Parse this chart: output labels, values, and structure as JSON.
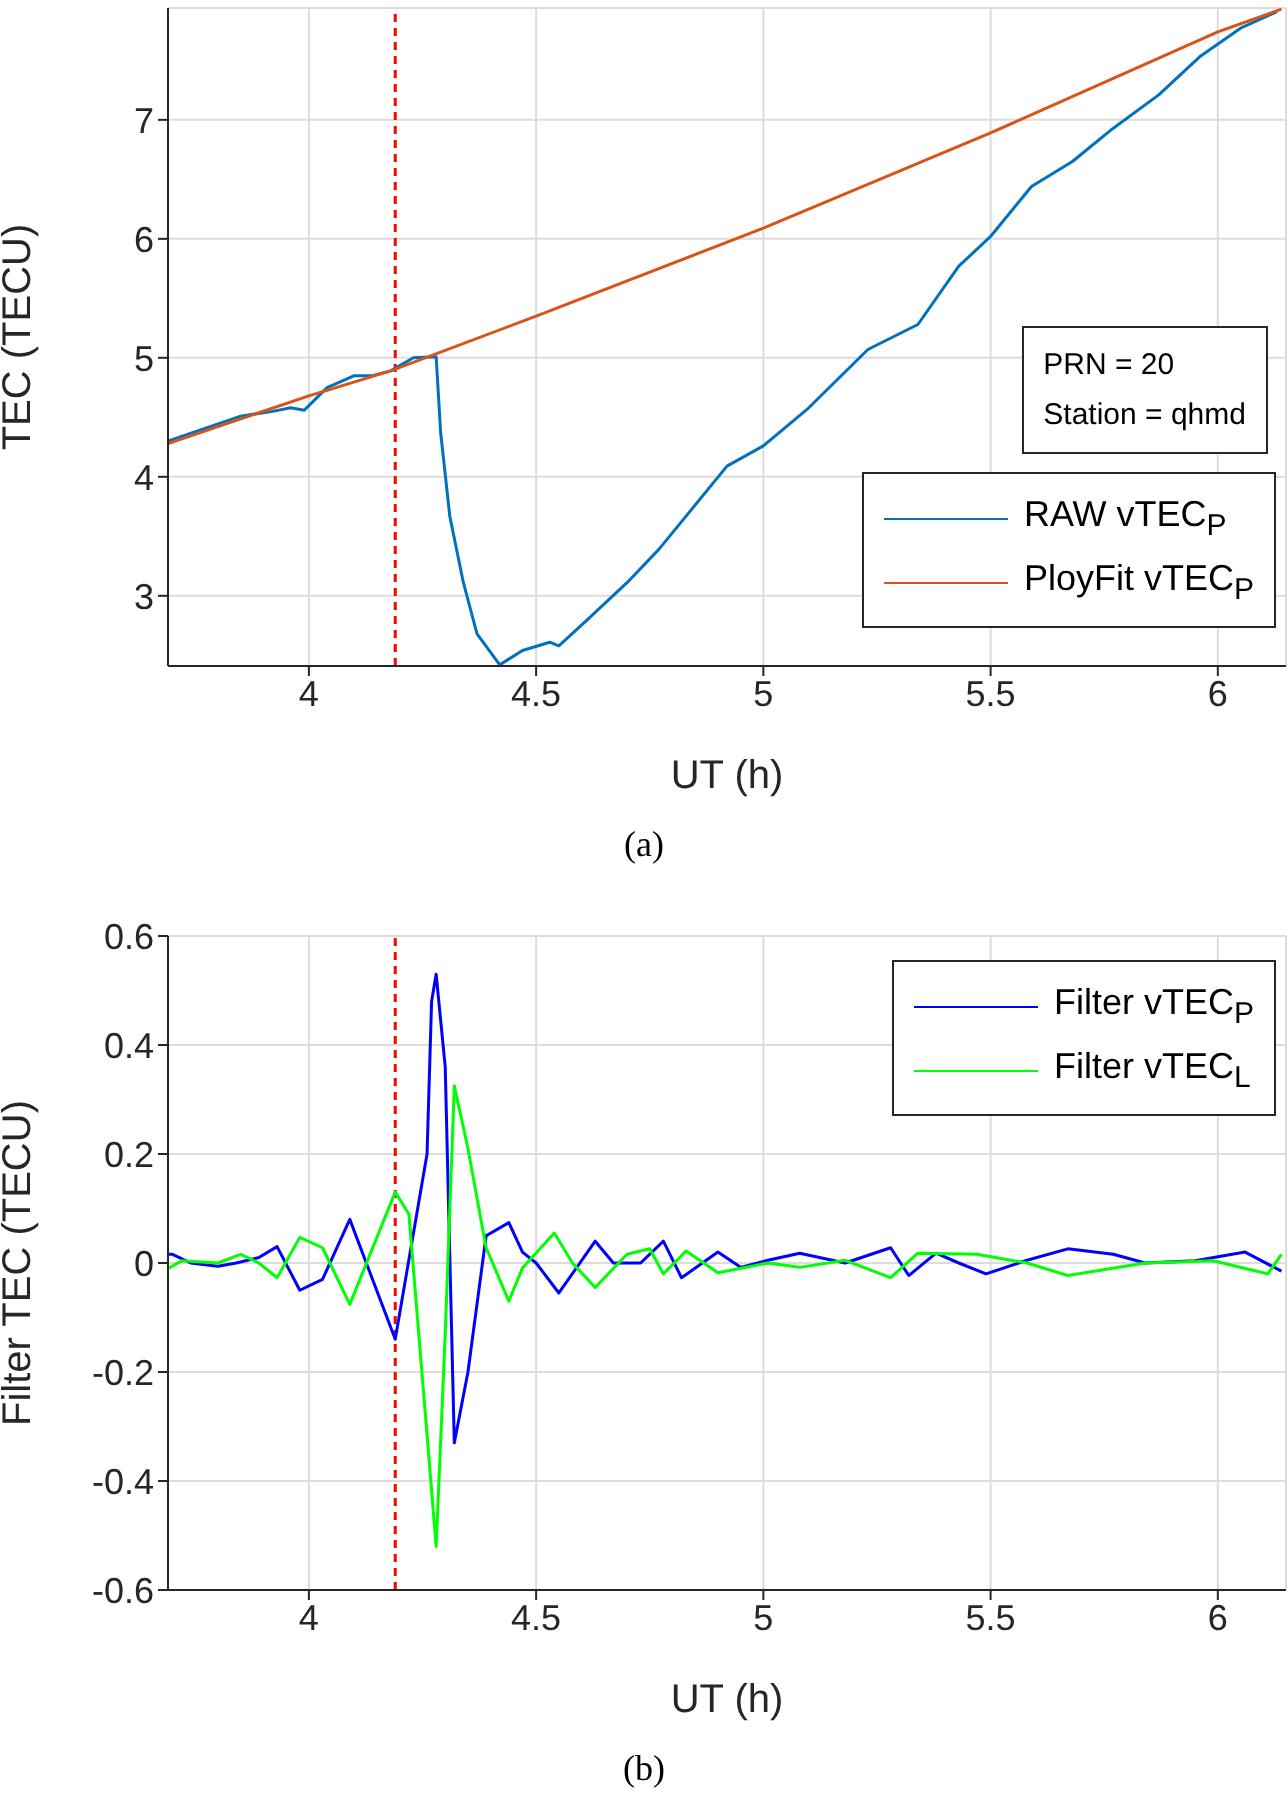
{
  "chart_data": [
    {
      "type": "line",
      "xlabel": "UT (h)",
      "ylabel": "TEC (TECU)",
      "xlim": [
        3.69,
        6.15
      ],
      "ylim": [
        2.41,
        7.94
      ],
      "xticks": [
        4,
        4.5,
        5,
        5.5,
        6
      ],
      "yticks": [
        3,
        4,
        5,
        6,
        7
      ],
      "grid": true,
      "legend": "bottom right",
      "marker": "none",
      "line_style": "solid",
      "ref_lines": [
        {
          "axis": "x",
          "value": 4.19,
          "color": "#ff0000",
          "line_style": "dashed"
        }
      ],
      "annotations": [
        "PRN = 20",
        "Station = qhmd",
        "(a)"
      ],
      "series": [
        {
          "name": "RAW vTEC$_{P}$",
          "color": "#0072bd",
          "x": [
            3.69,
            3.85,
            3.92,
            3.96,
            3.99,
            4.04,
            4.1,
            4.14,
            4.18,
            4.23,
            4.28,
            4.29,
            4.31,
            4.34,
            4.37,
            4.42,
            4.47,
            4.53,
            4.55,
            4.61,
            4.7,
            4.77,
            4.83,
            4.92,
            5.0,
            5.1,
            5.23,
            5.34,
            5.43,
            5.5,
            5.59,
            5.68,
            5.77,
            5.87,
            5.96,
            6.05,
            6.13
          ],
          "values": [
            4.3,
            4.51,
            4.55,
            4.58,
            4.56,
            4.75,
            4.85,
            4.85,
            4.89,
            5.0,
            5.01,
            4.37,
            3.67,
            3.11,
            2.68,
            2.42,
            2.54,
            2.61,
            2.58,
            2.79,
            3.11,
            3.39,
            3.67,
            4.09,
            4.26,
            4.58,
            5.07,
            5.28,
            5.77,
            6.02,
            6.44,
            6.65,
            6.93,
            7.21,
            7.53,
            7.77,
            7.91
          ]
        },
        {
          "name": "PloyFit vTEC$_{P}$",
          "color": "#d95319",
          "x": [
            3.69,
            4.0,
            4.18,
            4.5,
            5.0,
            5.5,
            6.0,
            6.14
          ],
          "values": [
            4.28,
            4.68,
            4.89,
            5.35,
            6.09,
            6.89,
            7.74,
            7.93
          ]
        }
      ]
    },
    {
      "type": "line",
      "xlabel": "UT (h)",
      "ylabel": "Filter TEC (TECU)",
      "xlim": [
        3.69,
        6.15
      ],
      "ylim": [
        -0.6,
        0.6
      ],
      "xticks": [
        4,
        4.5,
        5,
        5.5,
        6
      ],
      "yticks": [
        -0.6,
        -0.4,
        -0.2,
        0,
        0.2,
        0.4,
        0.6
      ],
      "grid": true,
      "legend": "top right",
      "marker": "none",
      "line_style": "solid",
      "ref_lines": [
        {
          "axis": "x",
          "value": 4.19,
          "color": "#ff0000",
          "line_style": "dashed"
        }
      ],
      "annotations": [
        "(b)"
      ],
      "series": [
        {
          "name": "Filter vTEC$_{P}$",
          "color": "#0000ff",
          "x": [
            3.69,
            3.7,
            3.74,
            3.8,
            3.84,
            3.89,
            3.93,
            3.98,
            4.03,
            4.09,
            4.19,
            4.26,
            4.27,
            4.28,
            4.3,
            4.32,
            4.35,
            4.39,
            4.44,
            4.47,
            4.5,
            4.55,
            4.63,
            4.67,
            4.73,
            4.78,
            4.82,
            4.9,
            4.95,
            5.01,
            5.08,
            5.18,
            5.28,
            5.32,
            5.38,
            5.43,
            5.49,
            5.58,
            5.67,
            5.77,
            5.84,
            5.95,
            6.06,
            6.14
          ],
          "values": [
            0.016,
            0.016,
            0,
            -0.006,
            0,
            0.01,
            0.03,
            -0.05,
            -0.03,
            0.08,
            -0.14,
            0.2,
            0.48,
            0.53,
            0.36,
            -0.33,
            -0.2,
            0.05,
            0.074,
            0.02,
            0,
            -0.055,
            0.04,
            0,
            0,
            0.04,
            -0.027,
            0.02,
            -0.008,
            0.005,
            0.018,
            0,
            0.028,
            -0.023,
            0.018,
            0,
            -0.02,
            0.005,
            0.026,
            0.016,
            0,
            0.004,
            0.02,
            -0.015
          ]
        },
        {
          "name": "Filter vTEC$_{L}$",
          "color": "#00ff00",
          "x": [
            3.69,
            3.72,
            3.8,
            3.85,
            3.89,
            3.93,
            3.98,
            4.03,
            4.09,
            4.19,
            4.22,
            4.26,
            4.28,
            4.3,
            4.32,
            4.35,
            4.39,
            4.44,
            4.47,
            4.54,
            4.58,
            4.63,
            4.7,
            4.75,
            4.78,
            4.83,
            4.9,
            5.01,
            5.08,
            5.18,
            5.28,
            5.34,
            5.47,
            5.58,
            5.67,
            5.84,
            5.99,
            6.11,
            6.14
          ],
          "values": [
            -0.01,
            0.004,
            0,
            0.016,
            0,
            -0.027,
            0.047,
            0.028,
            -0.076,
            0.13,
            0.09,
            -0.315,
            -0.52,
            -0.13,
            0.325,
            0.21,
            0.028,
            -0.07,
            -0.009,
            0.055,
            0,
            -0.045,
            0.016,
            0.026,
            -0.02,
            0.022,
            -0.018,
            0,
            -0.008,
            0.005,
            -0.027,
            0.018,
            0.016,
            0,
            -0.023,
            0,
            0.004,
            -0.02,
            0.016
          ]
        }
      ]
    }
  ]
}
